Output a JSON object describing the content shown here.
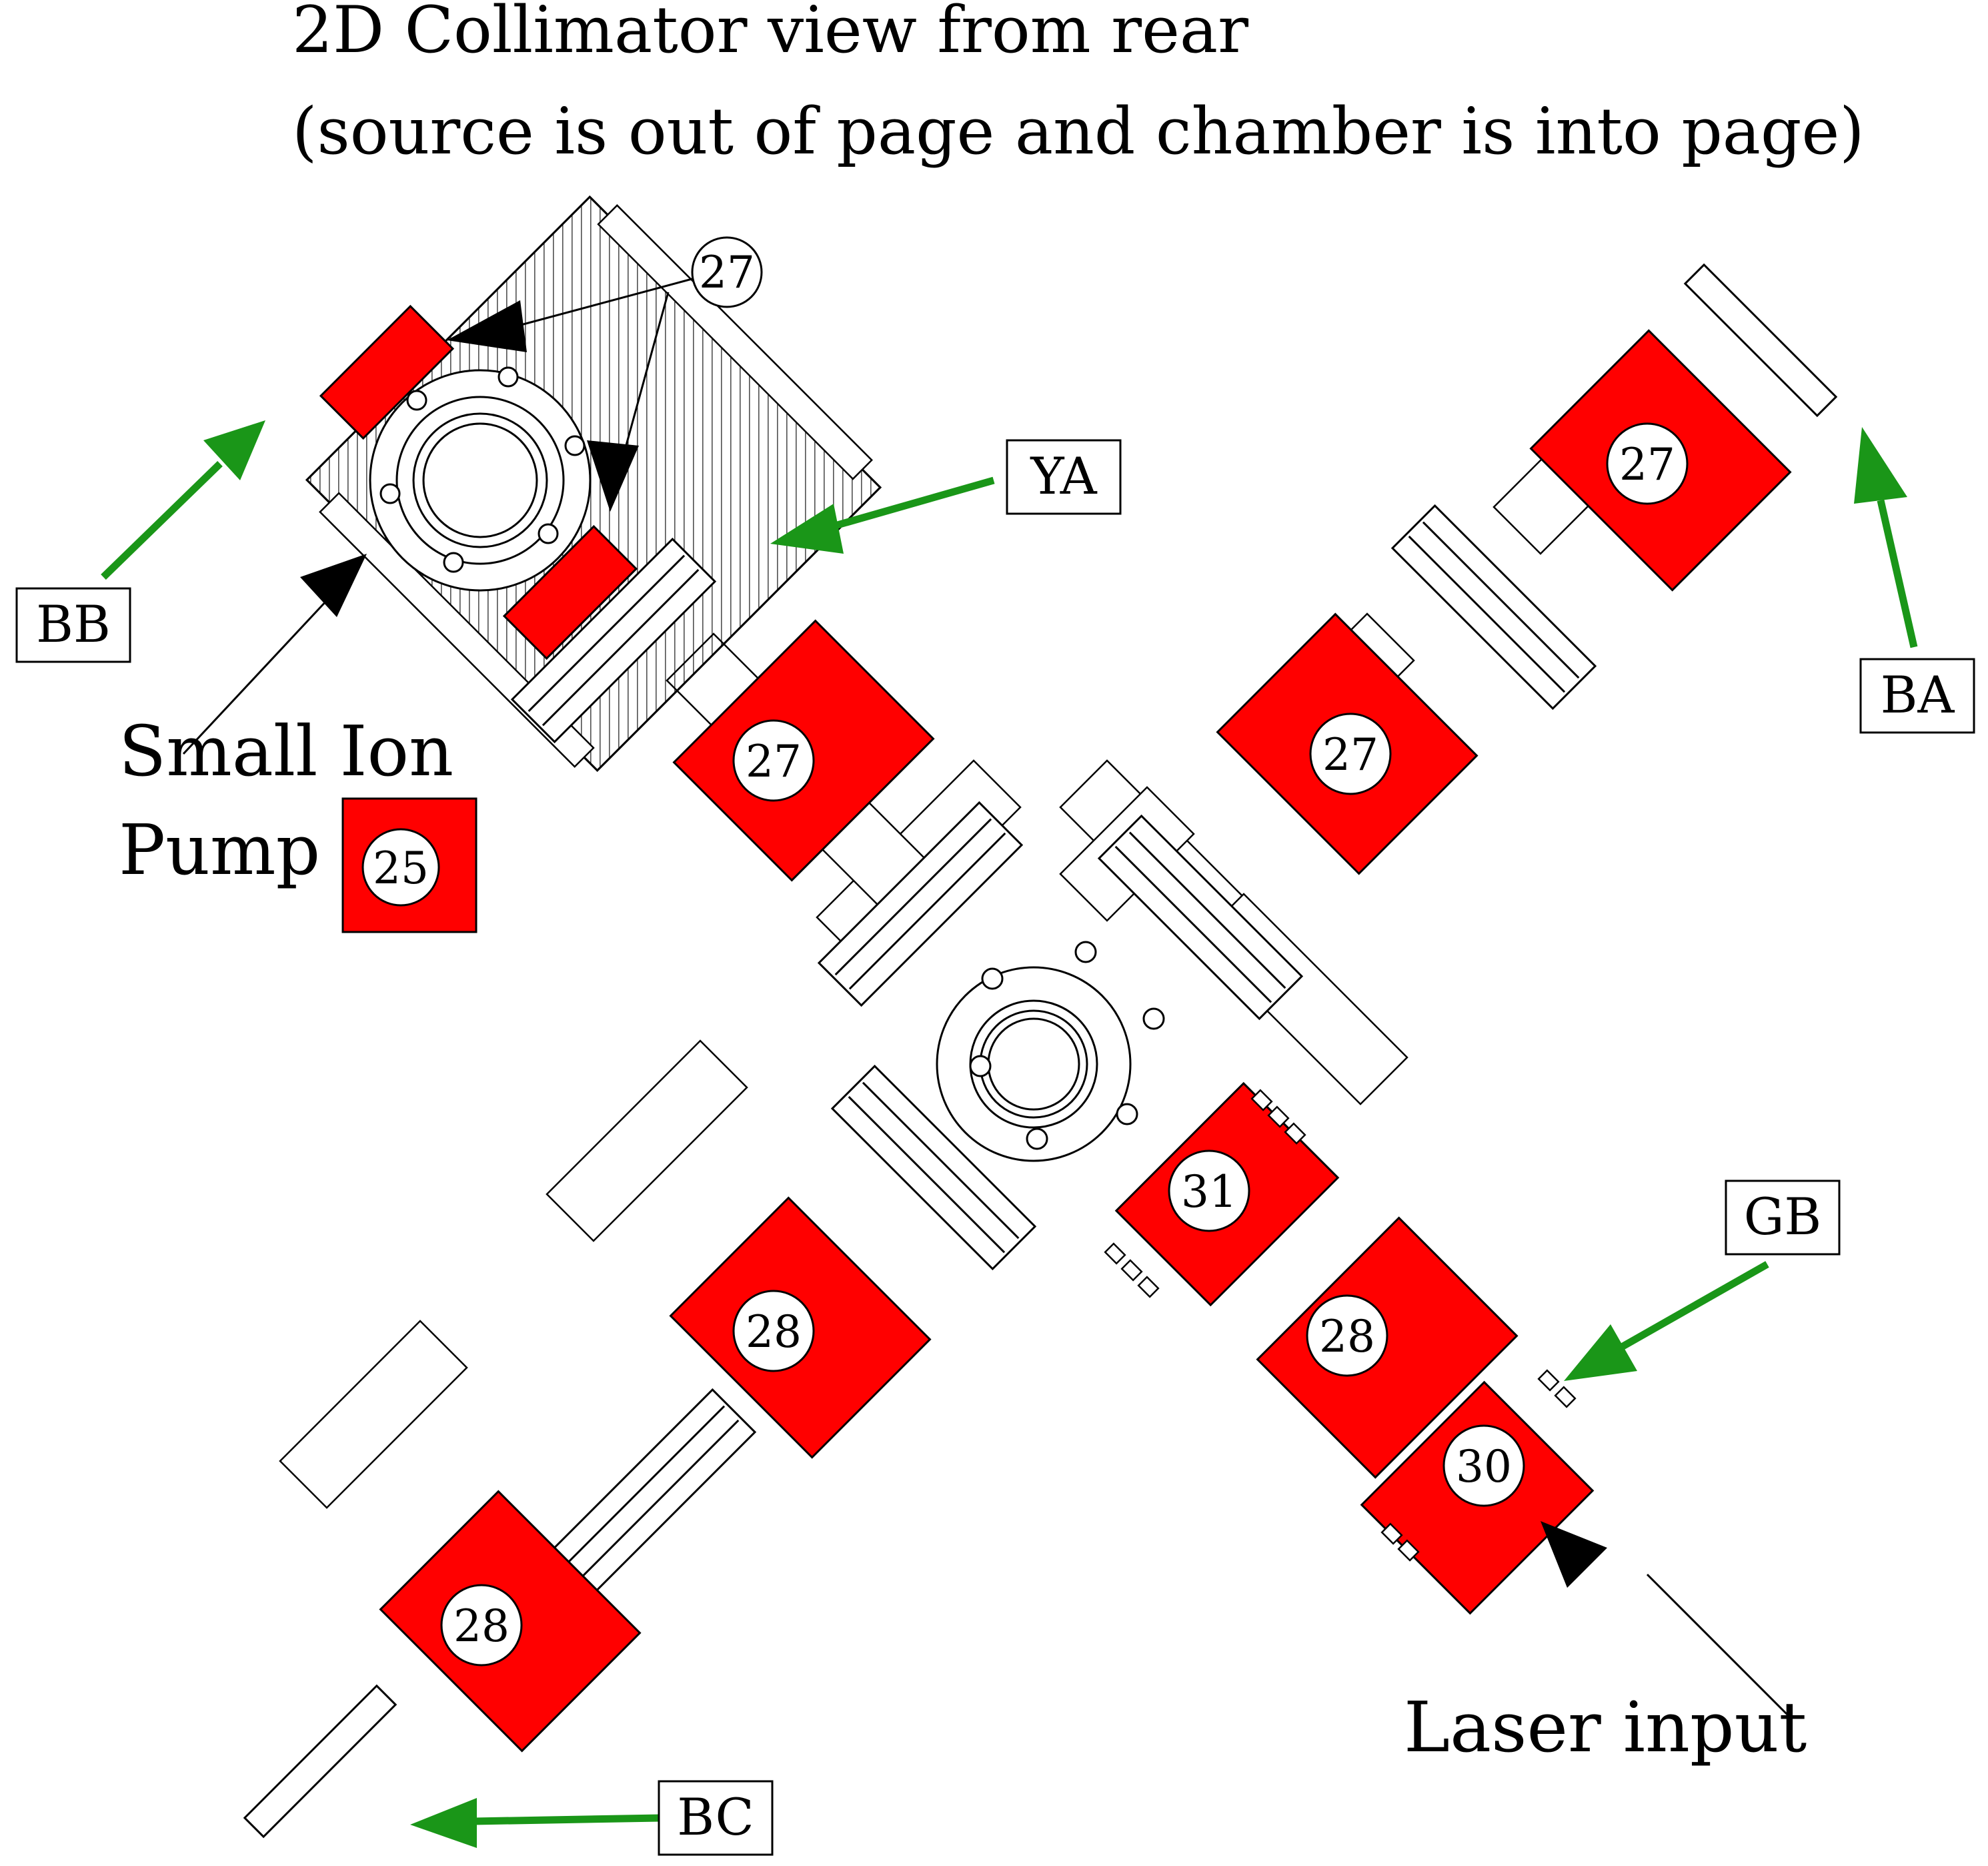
{
  "title": {
    "line1": "2D Collimator view from rear",
    "line2": "(source is out of page and chamber is into page)"
  },
  "callouts": {
    "c27_top": "27",
    "arm_upper_left": "27",
    "arm_upper_right_inner": "27",
    "arm_upper_right_outer": "27",
    "arm_lower_left_inner": "28",
    "arm_lower_left_outer": "28",
    "arm_lower_right_31": "31",
    "arm_lower_right_28": "28",
    "arm_lower_right_30": "30",
    "pump_25": "25"
  },
  "labels": {
    "YA": "YA",
    "BB": "BB",
    "BA": "BA",
    "GB": "GB",
    "BC": "BC",
    "small_ion_line1": "Small Ion",
    "small_ion_line2": "Pump",
    "laser_input": "Laser input"
  },
  "colors": {
    "coil": "#ff0000",
    "arrow_green": "#1a9618",
    "arrow_black": "#000000",
    "line": "#000000"
  }
}
